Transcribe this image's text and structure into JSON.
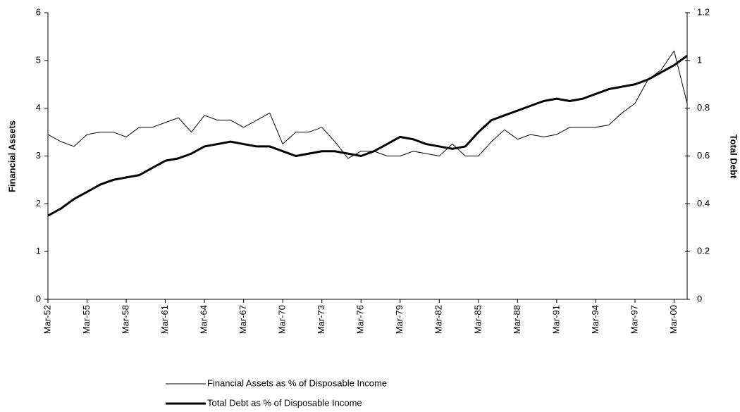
{
  "chart_data": {
    "type": "line",
    "categories": [
      "Mar-52",
      null,
      null,
      "Mar-55",
      null,
      null,
      "Mar-58",
      null,
      null,
      "Mar-61",
      null,
      null,
      "Mar-64",
      null,
      null,
      "Mar-67",
      null,
      null,
      "Mar-70",
      null,
      null,
      "Mar-73",
      null,
      null,
      "Mar-76",
      null,
      null,
      "Mar-79",
      null,
      null,
      "Mar-82",
      null,
      null,
      "Mar-85",
      null,
      null,
      "Mar-88",
      null,
      null,
      "Mar-91",
      null,
      null,
      "Mar-94",
      null,
      null,
      "Mar-97",
      null,
      null,
      "Mar-00",
      null
    ],
    "series": [
      {
        "name": "Financial Assets as % of Disposable Income",
        "color": "#000000",
        "line_width": 1,
        "values": [
          3.45,
          3.3,
          3.2,
          3.45,
          3.5,
          3.5,
          3.4,
          3.6,
          3.6,
          3.7,
          3.8,
          3.5,
          3.85,
          3.75,
          3.75,
          3.6,
          3.75,
          3.9,
          3.25,
          3.5,
          3.5,
          3.6,
          3.3,
          2.95,
          3.1,
          3.1,
          3.0,
          3.0,
          3.1,
          3.05,
          3.0,
          3.25,
          3.0,
          3.0,
          3.3,
          3.55,
          3.35,
          3.45,
          3.4,
          3.45,
          3.6,
          3.6,
          3.6,
          3.65,
          3.9,
          4.1,
          4.6,
          4.8,
          5.2,
          4.1
        ]
      },
      {
        "name": "Total Debt as % of Disposable Income",
        "color": "#000000",
        "line_width": 3,
        "axis": "y2",
        "values": [
          0.35,
          0.38,
          0.42,
          0.45,
          0.48,
          0.5,
          0.51,
          0.52,
          0.55,
          0.58,
          0.59,
          0.61,
          0.64,
          0.65,
          0.66,
          0.65,
          0.64,
          0.64,
          0.62,
          0.6,
          0.61,
          0.62,
          0.62,
          0.61,
          0.6,
          0.62,
          0.65,
          0.68,
          0.67,
          0.65,
          0.64,
          0.63,
          0.64,
          0.7,
          0.75,
          0.77,
          0.79,
          0.81,
          0.83,
          0.84,
          0.83,
          0.84,
          0.86,
          0.88,
          0.89,
          0.9,
          0.92,
          0.95,
          0.98,
          1.02
        ]
      }
    ],
    "y_label": "Financial Assets",
    "y2_label": "Total Debt",
    "ylim": [
      0,
      6
    ],
    "yticks": [
      0,
      1,
      2,
      3,
      4,
      5,
      6
    ],
    "y2lim": [
      0,
      1.2
    ],
    "y2ticks": [
      0,
      0.2,
      0.4,
      0.6,
      0.8,
      1,
      1.2
    ],
    "grid": false,
    "legend": "bottom"
  }
}
